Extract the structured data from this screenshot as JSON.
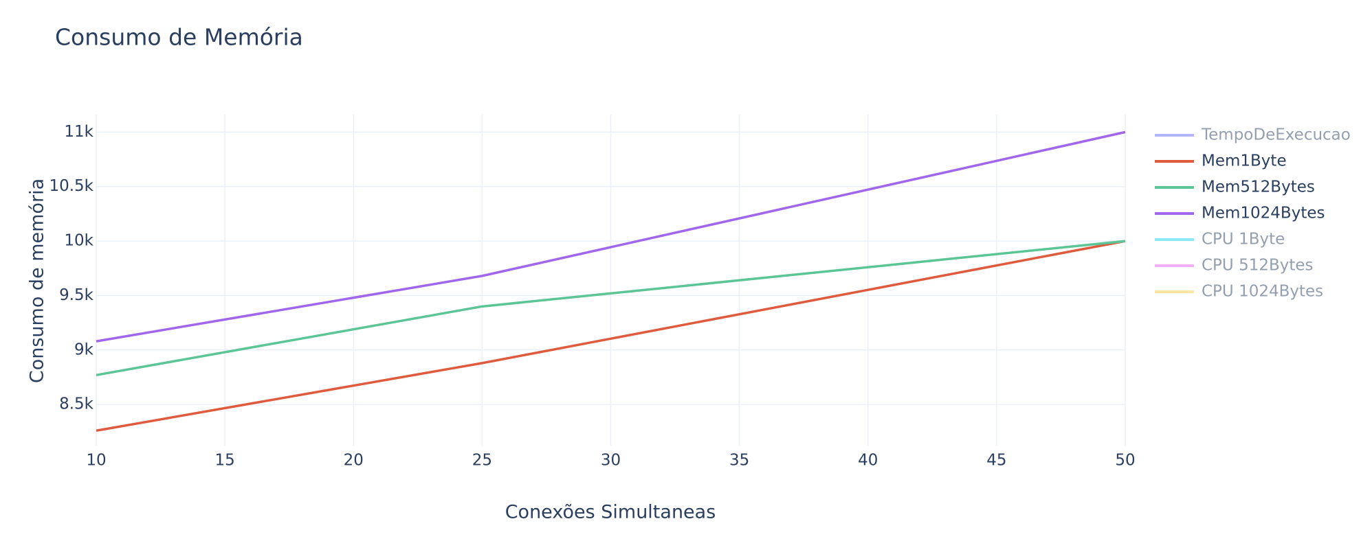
{
  "chart_data": {
    "type": "line",
    "title": "Consumo de Memória",
    "xlabel": "Conexões Simultaneas",
    "ylabel": "Consumo de memória",
    "x": [
      10,
      25,
      50
    ],
    "series": [
      {
        "name": "TempoDeExecucao",
        "color": "#636efa",
        "hidden": true
      },
      {
        "name": "Mem1Byte",
        "color": "#de5b3e",
        "values": [
          8260,
          8880,
          10000
        ]
      },
      {
        "name": "Mem512Bytes",
        "color": "#5cc596",
        "values": [
          8770,
          9400,
          10000
        ]
      },
      {
        "name": "Mem1024Bytes",
        "color": "#a066ec",
        "values": [
          9080,
          9680,
          11000
        ]
      },
      {
        "name": "CPU 1Byte",
        "color": "#19d3f3",
        "hidden": true
      },
      {
        "name": "CPU 512Bytes",
        "color": "#e763fa",
        "hidden": true
      },
      {
        "name": "CPU 1024Bytes",
        "color": "#fecb52",
        "hidden": true
      }
    ],
    "xlim": [
      10,
      50
    ],
    "xticks": [
      10,
      15,
      20,
      25,
      30,
      35,
      40,
      45,
      50
    ],
    "ylim": [
      8123,
      11160
    ],
    "yticks": [
      {
        "value": 8500,
        "label": "8.5k"
      },
      {
        "value": 9000,
        "label": "9k"
      },
      {
        "value": 9500,
        "label": "9.5k"
      },
      {
        "value": 10000,
        "label": "10k"
      },
      {
        "value": 10500,
        "label": "10.5k"
      },
      {
        "value": 11000,
        "label": "11k"
      }
    ],
    "grid": true,
    "legend": "right"
  }
}
